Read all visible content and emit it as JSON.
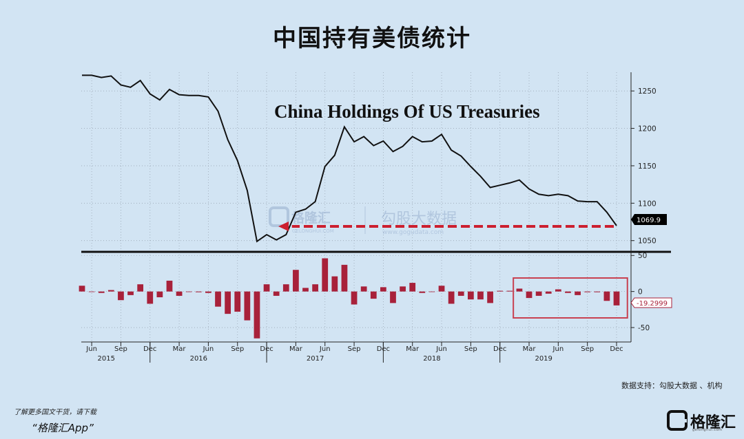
{
  "page": {
    "title": "中国持有美债统计",
    "source": "数据支持：勾股大数据 、机构",
    "promo_line1": "了解更多国文干货，请下载",
    "promo_line2": "“格隆汇App”",
    "logo_text": "格隆汇",
    "logo_url": "gelonghui.com"
  },
  "watermark": {
    "brand": "格隆汇",
    "brand_sub": "GELONGHUI.COM",
    "product": "勾股大数据",
    "product_url": "www.gogudata.com"
  },
  "chart_data": [
    {
      "type": "line",
      "title": "China Holdings Of US Treasuries",
      "ylim": [
        1035,
        1275
      ],
      "y_ticks": [
        1050,
        1100,
        1150,
        1200,
        1250
      ],
      "last_value_label": "1069.9",
      "colors": {
        "line": "#111111",
        "arrow": "#cc1f2f"
      },
      "grid": "dotted",
      "x_range": [
        0,
        55
      ],
      "series": [
        {
          "values": [
            1271,
            1271,
            1268,
            1270,
            1258,
            1255,
            1264,
            1246,
            1238,
            1252,
            1245,
            1244,
            1244,
            1242,
            1223,
            1185,
            1157,
            1117,
            1049,
            1058,
            1051,
            1058,
            1088,
            1092,
            1102,
            1149,
            1164,
            1202,
            1182,
            1189,
            1177,
            1183,
            1169,
            1176,
            1189,
            1182,
            1183,
            1192,
            1171,
            1163,
            1149,
            1136,
            1121,
            1124,
            1127,
            1131,
            1119,
            1112,
            1110,
            1112,
            1110,
            1103,
            1102,
            1102,
            1088,
            1069.9
          ]
        }
      ]
    },
    {
      "type": "bar",
      "ylim": [
        -70,
        55
      ],
      "y_ticks": [
        -50,
        0,
        50
      ],
      "last_value_label": "-19.2999",
      "colors": {
        "bar": "#a8213a",
        "highlight_box": "#c84050"
      },
      "grid": "dotted",
      "highlight_range": [
        45,
        55
      ],
      "values": [
        8,
        0,
        -2,
        2,
        -12,
        -5,
        10,
        -17,
        -8,
        15,
        -6,
        0,
        -1,
        -2,
        -21,
        -31,
        -28,
        -40,
        -65,
        10,
        -6,
        10,
        30,
        5,
        10,
        46,
        21,
        37,
        -18,
        7,
        -10,
        6,
        -16,
        7,
        12,
        -2,
        0,
        8,
        -17,
        -6,
        -11,
        -11,
        -16,
        1,
        1,
        4,
        -9,
        -6,
        -3,
        3,
        -2,
        -5,
        -1,
        -1,
        -13,
        -19.3
      ]
    }
  ],
  "x_axis": {
    "months": [
      "Jun",
      "Sep",
      "Dec",
      "Mar",
      "Jun",
      "Sep",
      "Dec",
      "Mar",
      "Jun",
      "Sep",
      "Dec",
      "Mar",
      "Jun",
      "Sep",
      "Dec",
      "Mar",
      "Jun",
      "Sep",
      "Dec"
    ],
    "years": [
      "2015",
      "2016",
      "2017",
      "2018",
      "2019"
    ]
  }
}
